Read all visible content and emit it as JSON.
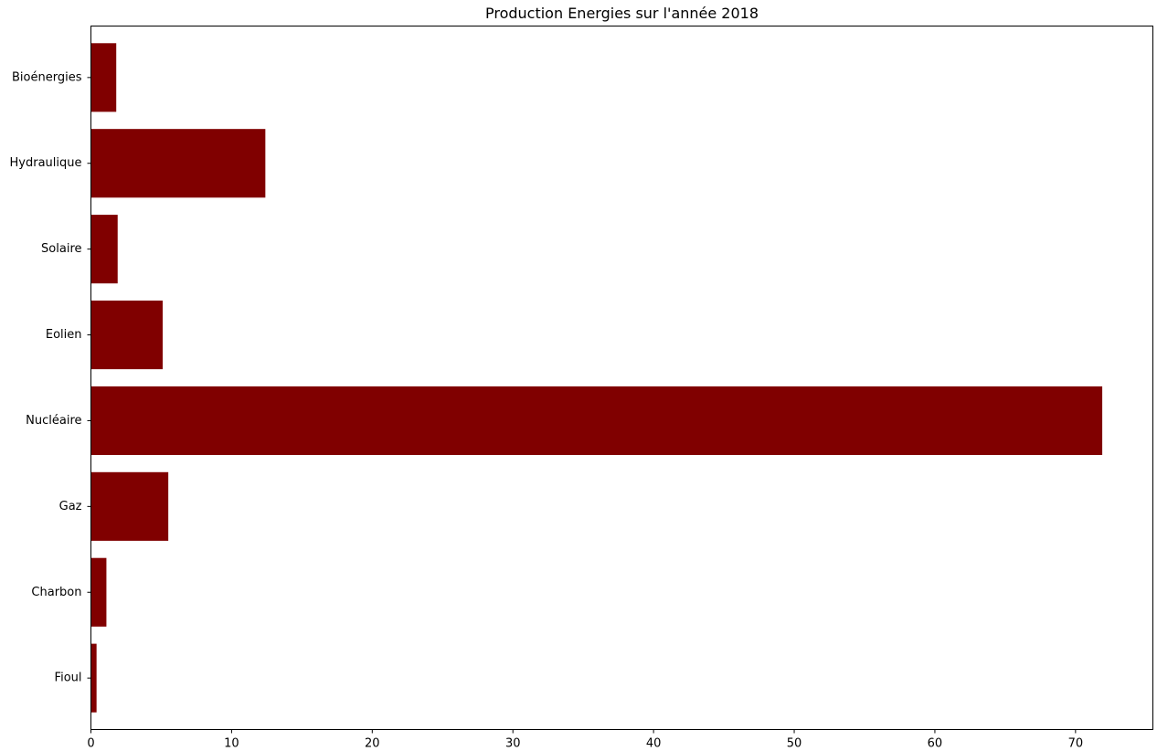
{
  "chart_data": {
    "type": "bar",
    "orientation": "horizontal",
    "title": "Production Energies sur l'année 2018",
    "xlabel": "",
    "ylabel": "",
    "categories": [
      "Fioul",
      "Charbon",
      "Gaz",
      "Nucléaire",
      "Eolien",
      "Solaire",
      "Hydraulique",
      "Bioénergies"
    ],
    "values": [
      0.4,
      1.1,
      5.5,
      71.9,
      5.1,
      1.9,
      12.4,
      1.8
    ],
    "xlim": [
      0,
      75.5
    ],
    "xticks": [
      0,
      10,
      20,
      30,
      40,
      50,
      60,
      70
    ],
    "grid": false,
    "legend": false,
    "bar_color": "#800000"
  }
}
